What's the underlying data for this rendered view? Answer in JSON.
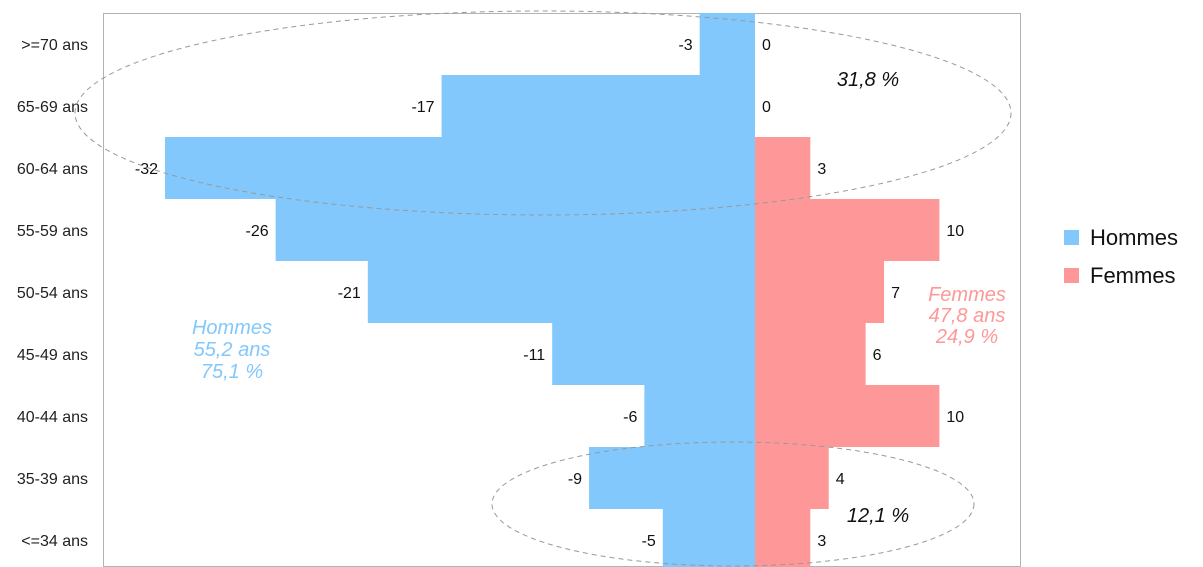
{
  "chart_data": {
    "type": "bar",
    "orientation": "horizontal",
    "stacking": "diverging",
    "categories": [
      ">=70 ans",
      "65-69 ans",
      "60-64 ans",
      "55-59 ans",
      "50-54 ans",
      "45-49 ans",
      "40-44 ans",
      "35-39 ans",
      "<=34 ans"
    ],
    "series": [
      {
        "name": "Hommes",
        "color": "#82c8fc",
        "values": [
          -3,
          -17,
          -32,
          -26,
          -21,
          -11,
          -6,
          -9,
          -5
        ]
      },
      {
        "name": "Femmes",
        "color": "#fe9898",
        "values": [
          0,
          0,
          3,
          10,
          7,
          6,
          10,
          4,
          3
        ]
      }
    ],
    "xlim": [
      -32,
      15
    ],
    "grid": false,
    "legend_position": "right",
    "annotations": {
      "top_group": "31,8 %",
      "bottom_group": "12,1 %",
      "hommes": [
        "Hommes",
        "55,2 ans",
        "75,1 %"
      ],
      "femmes": [
        "Femmes",
        "47,8 ans",
        "24,9 %"
      ]
    }
  }
}
